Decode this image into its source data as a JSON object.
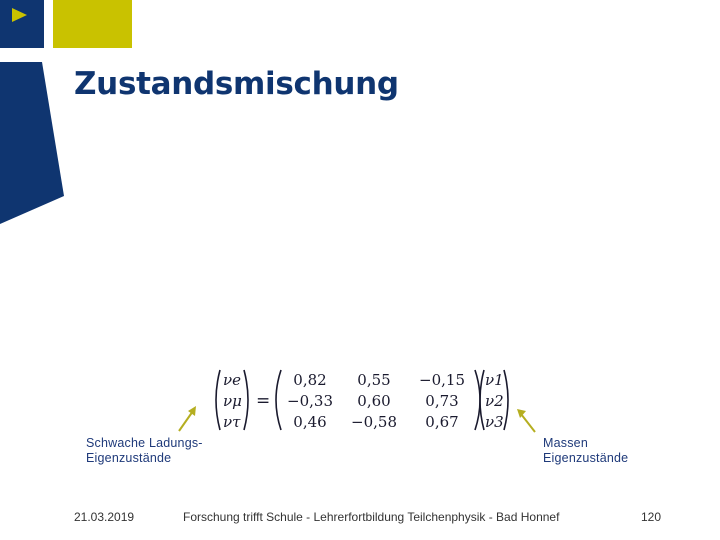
{
  "slide": {
    "title": "Zustandsmischung",
    "play_icon": "play-triangle-icon",
    "colors": {
      "navy": "#0f3570",
      "yellow": "#c9c200",
      "arrow": "#b5ae20"
    }
  },
  "equation": {
    "lhs": [
      "νe",
      "νμ",
      "ντ"
    ],
    "matrix": [
      [
        "0,82",
        "0,55",
        "−0,15"
      ],
      [
        "−0,33",
        "0,60",
        "0,73"
      ],
      [
        "0,46",
        "−0,58",
        "0,67"
      ]
    ],
    "rhs": [
      "ν1",
      "ν2",
      "ν3"
    ]
  },
  "annotations": {
    "left_line1": "Schwache Ladungs-",
    "left_line2": "Eigenzustände",
    "right_line1": "Massen",
    "right_line2": "Eigenzustände"
  },
  "footer": {
    "date": "21.03.2019",
    "center": "Forschung trifft Schule - Lehrerfortbildung Teilchenphysik - Bad Honnef",
    "page": "120"
  }
}
